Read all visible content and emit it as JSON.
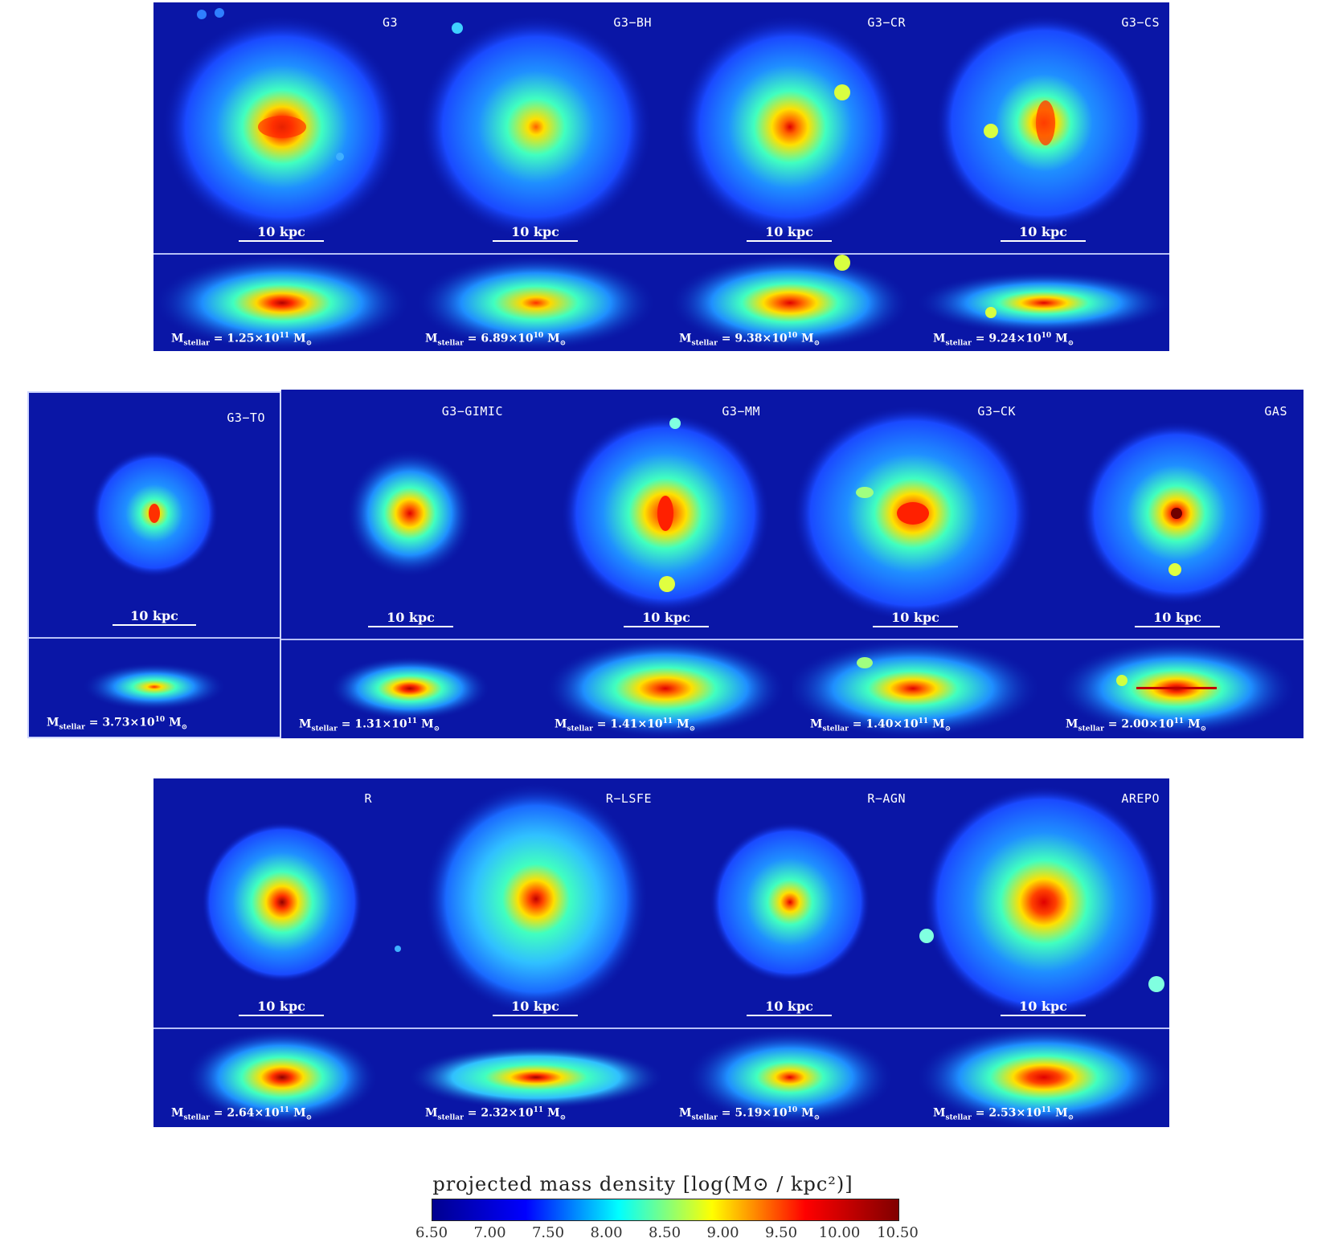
{
  "scale_label": "10 kpc",
  "mass_prefix": "M",
  "mass_sub": "stellar",
  "mass_unit": "M",
  "mass_unit_sub": "⊙",
  "rows": [
    {
      "panels": [
        {
          "name": "G3",
          "mass": "1.25×10",
          "exp": "11"
        },
        {
          "name": "G3−BH",
          "mass": "6.89×10",
          "exp": "10"
        },
        {
          "name": "G3−CR",
          "mass": "9.38×10",
          "exp": "10"
        },
        {
          "name": "G3−CS",
          "mass": "9.24×10",
          "exp": "10"
        }
      ]
    },
    {
      "panels": [
        {
          "name": "G3−TO",
          "mass": "3.73×10",
          "exp": "10"
        },
        {
          "name": "G3−GIMIC",
          "mass": "1.31×10",
          "exp": "11"
        },
        {
          "name": "G3−MM",
          "mass": "1.41×10",
          "exp": "11"
        },
        {
          "name": "G3−CK",
          "mass": "1.40×10",
          "exp": "11"
        },
        {
          "name": "GAS",
          "mass": "2.00×10",
          "exp": "11"
        }
      ]
    },
    {
      "panels": [
        {
          "name": "R",
          "mass": "2.64×10",
          "exp": "11"
        },
        {
          "name": "R−LSFE",
          "mass": "2.32×10",
          "exp": "11"
        },
        {
          "name": "R−AGN",
          "mass": "5.19×10",
          "exp": "10"
        },
        {
          "name": "AREPO",
          "mass": "2.53×10",
          "exp": "11"
        }
      ]
    }
  ],
  "colorbar": {
    "title": "projected  mass  density  [log(M⊙ / kpc²)]",
    "ticks": [
      "6.50",
      "7.00",
      "7.50",
      "8.00",
      "8.50",
      "9.00",
      "9.50",
      "10.00",
      "10.50"
    ],
    "range": [
      6.5,
      10.5
    ],
    "colormap": [
      "#00008f",
      "#0000ff",
      "#00ffff",
      "#ffff00",
      "#ff0000",
      "#800000"
    ]
  }
}
